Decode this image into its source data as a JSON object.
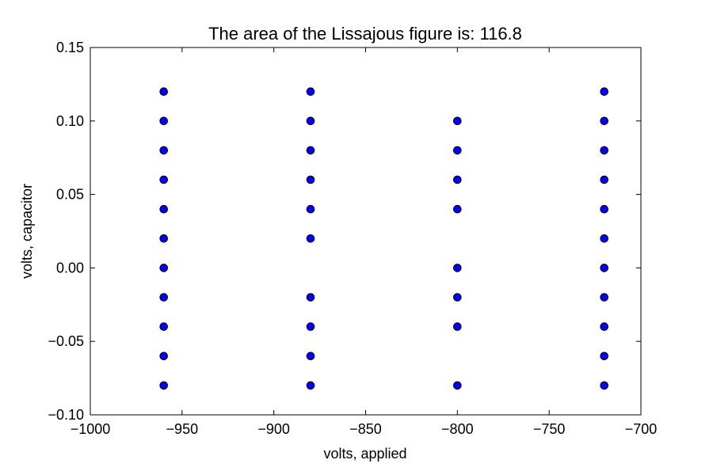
{
  "chart_data": {
    "type": "scatter",
    "title": "The area of the Lissajous figure is: 116.8",
    "xlabel": "volts, applied",
    "ylabel": "volts, capacitor",
    "xlim": [
      -1000,
      -700
    ],
    "ylim": [
      -0.1,
      0.15
    ],
    "x_ticks": [
      -1000,
      -950,
      -900,
      -850,
      -800,
      -750,
      -700
    ],
    "x_tick_labels": [
      "−1000",
      "−950",
      "−900",
      "−850",
      "−800",
      "−750",
      "−700"
    ],
    "y_ticks": [
      -0.1,
      -0.05,
      0.0,
      0.05,
      0.1,
      0.15
    ],
    "y_tick_labels": [
      "−0.10",
      "−0.05",
      "0.00",
      "0.05",
      "0.10",
      "0.15"
    ],
    "grid": false,
    "marker_color": "#0000ff",
    "marker_edge_color": "#000000",
    "points": [
      {
        "x": -960,
        "y": 0.12
      },
      {
        "x": -960,
        "y": 0.1
      },
      {
        "x": -960,
        "y": 0.08
      },
      {
        "x": -960,
        "y": 0.06
      },
      {
        "x": -960,
        "y": 0.04
      },
      {
        "x": -960,
        "y": 0.02
      },
      {
        "x": -960,
        "y": 0.0
      },
      {
        "x": -960,
        "y": -0.02
      },
      {
        "x": -960,
        "y": -0.04
      },
      {
        "x": -960,
        "y": -0.06
      },
      {
        "x": -960,
        "y": -0.08
      },
      {
        "x": -880,
        "y": 0.12
      },
      {
        "x": -880,
        "y": 0.1
      },
      {
        "x": -880,
        "y": 0.08
      },
      {
        "x": -880,
        "y": 0.06
      },
      {
        "x": -880,
        "y": 0.04
      },
      {
        "x": -880,
        "y": 0.02
      },
      {
        "x": -880,
        "y": -0.02
      },
      {
        "x": -880,
        "y": -0.04
      },
      {
        "x": -880,
        "y": -0.06
      },
      {
        "x": -880,
        "y": -0.08
      },
      {
        "x": -800,
        "y": 0.1
      },
      {
        "x": -800,
        "y": 0.08
      },
      {
        "x": -800,
        "y": 0.06
      },
      {
        "x": -800,
        "y": 0.04
      },
      {
        "x": -800,
        "y": 0.0
      },
      {
        "x": -800,
        "y": -0.02
      },
      {
        "x": -800,
        "y": -0.04
      },
      {
        "x": -800,
        "y": -0.08
      },
      {
        "x": -720,
        "y": 0.12
      },
      {
        "x": -720,
        "y": 0.1
      },
      {
        "x": -720,
        "y": 0.08
      },
      {
        "x": -720,
        "y": 0.06
      },
      {
        "x": -720,
        "y": 0.04
      },
      {
        "x": -720,
        "y": 0.02
      },
      {
        "x": -720,
        "y": 0.0
      },
      {
        "x": -720,
        "y": -0.02
      },
      {
        "x": -720,
        "y": -0.04
      },
      {
        "x": -720,
        "y": -0.06
      },
      {
        "x": -720,
        "y": -0.08
      }
    ]
  }
}
